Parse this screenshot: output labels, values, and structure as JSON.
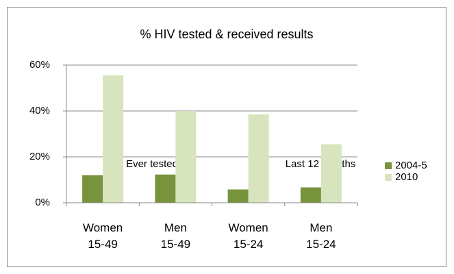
{
  "chart_data": {
    "type": "bar",
    "title": "% HIV tested & received results",
    "categories": [
      "Women 15-49",
      "Men 15-49",
      "Women 15-24",
      "Men 15-24"
    ],
    "series": [
      {
        "name": "2004-5",
        "color": "#77933c",
        "values": [
          12,
          12.3,
          5.8,
          6.7
        ]
      },
      {
        "name": "2010",
        "color": "#d7e4bd",
        "values": [
          55.5,
          40,
          38.5,
          25.5
        ]
      }
    ],
    "ylim": [
      0,
      60
    ],
    "yticks": [
      {
        "value": 0,
        "label": "0%"
      },
      {
        "value": 20,
        "label": "20%"
      },
      {
        "value": 40,
        "label": "40%"
      },
      {
        "value": 60,
        "label": "60%"
      }
    ],
    "grid": true,
    "legend": "right",
    "annotations": [
      "Ever tested",
      "Last 12 months"
    ]
  }
}
